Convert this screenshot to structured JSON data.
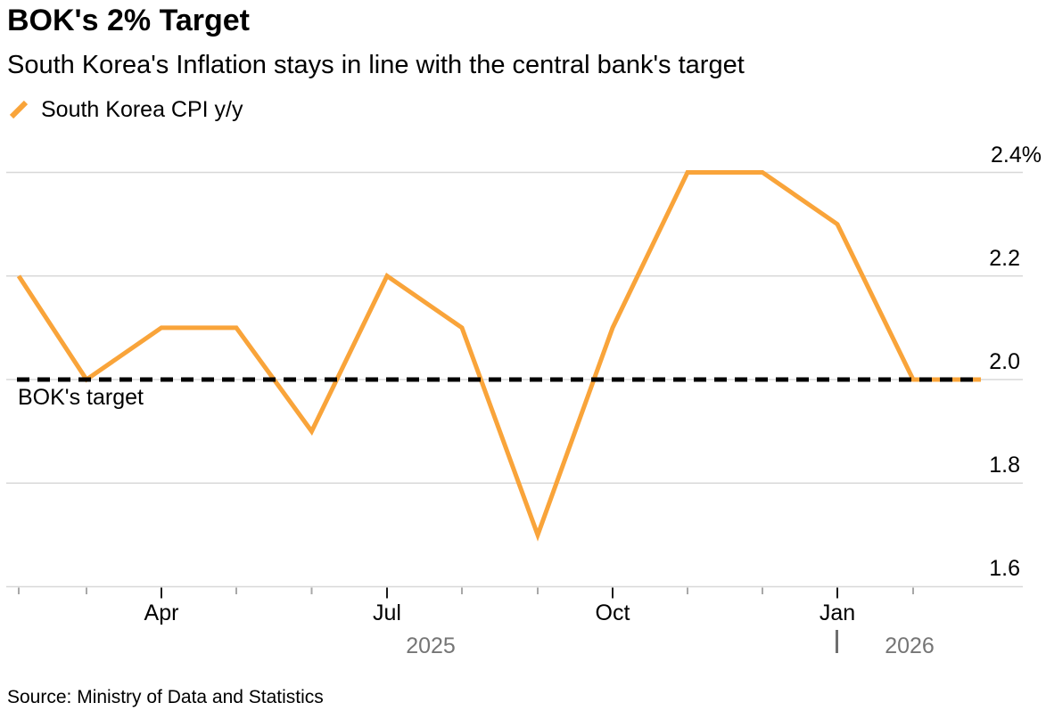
{
  "header": {
    "title": "BOK's 2% Target",
    "subtitle": "South Korea's Inflation stays in line with the central bank's target"
  },
  "legend": {
    "series_label": "South Korea CPI y/y",
    "swatch_color": "#F9A43A"
  },
  "chart_data": {
    "type": "line",
    "title": "BOK's 2% Target",
    "subtitle": "South Korea's Inflation stays in line with the central bank's target",
    "unit": "%",
    "grid": "horizontal",
    "legend_position": "top-left",
    "ylim": [
      1.6,
      2.45
    ],
    "y_ticks": [
      {
        "value": 2.4,
        "label": "2.4%"
      },
      {
        "value": 2.2,
        "label": "2.2"
      },
      {
        "value": 2.0,
        "label": "2.0"
      },
      {
        "value": 1.8,
        "label": "1.8"
      },
      {
        "value": 1.6,
        "label": "1.6"
      }
    ],
    "x": [
      "Feb 2025",
      "Mar 2025",
      "Apr 2025",
      "May 2025",
      "Jun 2025",
      "Jul 2025",
      "Aug 2025",
      "Sep 2025",
      "Oct 2025",
      "Nov 2025",
      "Dec 2025",
      "Jan 2026",
      "Feb 2026",
      "Mar 2026"
    ],
    "series": [
      {
        "name": "South Korea CPI y/y",
        "color": "#F9A43A",
        "values": [
          2.2,
          2.0,
          2.1,
          2.1,
          1.9,
          2.2,
          2.1,
          1.7,
          2.1,
          2.4,
          2.4,
          2.3,
          2.0,
          2.0
        ]
      }
    ],
    "reference_line": {
      "label": "BOK's target",
      "value": 2.0,
      "style": "dashed",
      "color": "#000000"
    },
    "x_major_ticks": [
      {
        "label": "Apr"
      },
      {
        "label": "Jul"
      },
      {
        "label": "Oct"
      },
      {
        "label": "Jan"
      }
    ],
    "year_labels": [
      {
        "text": "2025"
      },
      {
        "text": "2026"
      }
    ],
    "colors": {
      "series": "#F9A43A",
      "gridline": "#D8D8D8",
      "minor_tick": "#A8A8A8",
      "major_tick": "#1a1a1a",
      "year_text": "#757575"
    }
  },
  "footer": {
    "source": "Source: Ministry of Data and Statistics"
  }
}
